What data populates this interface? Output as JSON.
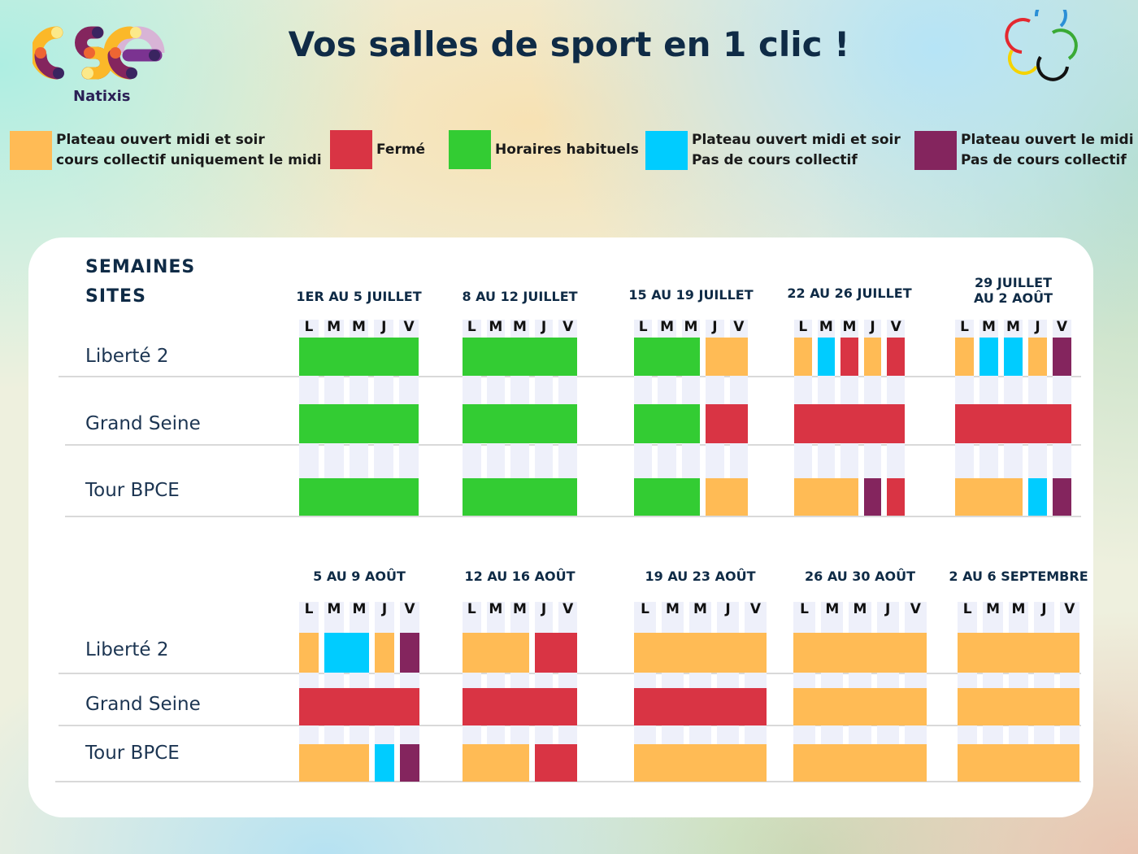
{
  "header": {
    "title": "Vos salles de sport en 1 clic !",
    "logo_text": "Natixis"
  },
  "legend": [
    {
      "code": "O",
      "color": "#ffbb55",
      "label": "Plateau ouvert midi et soir\ncours collectif uniquement le midi"
    },
    {
      "code": "F",
      "color": "#d93444",
      "label": "Fermé"
    },
    {
      "code": "H",
      "color": "#33cc33",
      "label": "Horaires habituels"
    },
    {
      "code": "C",
      "color": "#00ccff",
      "label": "Plateau ouvert midi et soir\nPas de cours collectif"
    },
    {
      "code": "P",
      "color": "#84255e",
      "label": "Plateau ouvert le midi\nPas de cours collectif"
    }
  ],
  "table": {
    "header_weeks": "SEMAINES",
    "header_sites": "SITES",
    "sites": [
      "Liberté 2",
      "Grand Seine",
      "Tour BPCE"
    ],
    "days": [
      "L",
      "M",
      "M",
      "J",
      "V"
    ],
    "blocks": [
      {
        "weeks": [
          {
            "label": "1ER AU 5 JUILLET",
            "rows": [
              [
                "H5"
              ],
              [
                "H5"
              ],
              [
                "H5"
              ]
            ]
          },
          {
            "label": "8 AU 12 JUILLET",
            "rows": [
              [
                "H5"
              ],
              [
                "H5"
              ],
              [
                "H5"
              ]
            ]
          },
          {
            "label": "15 AU 19 JUILLET",
            "rows": [
              [
                "H3",
                "O2"
              ],
              [
                "H3",
                "F2"
              ],
              [
                "H3",
                "O2"
              ]
            ]
          },
          {
            "label": "22 AU 26 JUILLET",
            "rows": [
              [
                "O1",
                "C1",
                "F1",
                "O1",
                "F1"
              ],
              [
                "F5"
              ],
              [
                "O3",
                "P1",
                "F1"
              ]
            ]
          },
          {
            "label": "29 JUILLET\nAU 2 AOÛT",
            "rows": [
              [
                "O1",
                "C1",
                "C1",
                "O1",
                "P1"
              ],
              [
                "F5"
              ],
              [
                "O3",
                "C1",
                "P1"
              ]
            ]
          }
        ]
      },
      {
        "weeks": [
          {
            "label": "5 AU 9 AOÛT",
            "rows": [
              [
                "O1",
                "C2",
                "O1",
                "P1"
              ],
              [
                "F5"
              ],
              [
                "O3",
                "C1",
                "P1"
              ]
            ]
          },
          {
            "label": "12 AU 16 AOÛT",
            "rows": [
              [
                "O3",
                "F2"
              ],
              [
                "F5"
              ],
              [
                "O3",
                "F2"
              ]
            ]
          },
          {
            "label": "19 AU 23 AOÛT",
            "rows": [
              [
                "O5"
              ],
              [
                "F5"
              ],
              [
                "O5"
              ]
            ]
          },
          {
            "label": "26 AU 30 AOÛT",
            "rows": [
              [
                "O5"
              ],
              [
                "O5"
              ],
              [
                "O5"
              ]
            ]
          },
          {
            "label": "2 AU 6 SEPTEMBRE",
            "rows": [
              [
                "O5"
              ],
              [
                "O5"
              ],
              [
                "O5"
              ]
            ]
          }
        ]
      }
    ]
  }
}
